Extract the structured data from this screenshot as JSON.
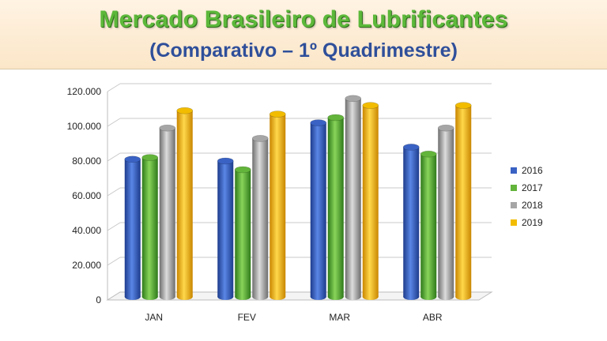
{
  "header": {
    "title": "Mercado Brasileiro de Lubrificantes",
    "subtitle": "(Comparativo – 1º Quadrimestre)"
  },
  "chart_data": {
    "type": "bar",
    "categories": [
      "JAN",
      "FEV",
      "MAR",
      "ABR"
    ],
    "series": [
      {
        "name": "2016",
        "values": [
          81000,
          80000,
          102000,
          88000
        ]
      },
      {
        "name": "2017",
        "values": [
          82000,
          75000,
          105000,
          84000
        ]
      },
      {
        "name": "2018",
        "values": [
          99000,
          93000,
          116000,
          99000
        ]
      },
      {
        "name": "2019",
        "values": [
          109000,
          107000,
          112000,
          112000
        ]
      }
    ],
    "ylim": [
      0,
      120000
    ],
    "yticks": [
      "0",
      "20.000",
      "40.000",
      "60.000",
      "80.000",
      "100.000",
      "120.000"
    ],
    "ytick_values": [
      0,
      20000,
      40000,
      60000,
      80000,
      100000,
      120000
    ],
    "grid": true,
    "legend": "right",
    "colors": [
      "#3a62c4",
      "#62b43a",
      "#a6a6a6",
      "#f2bc00"
    ]
  }
}
